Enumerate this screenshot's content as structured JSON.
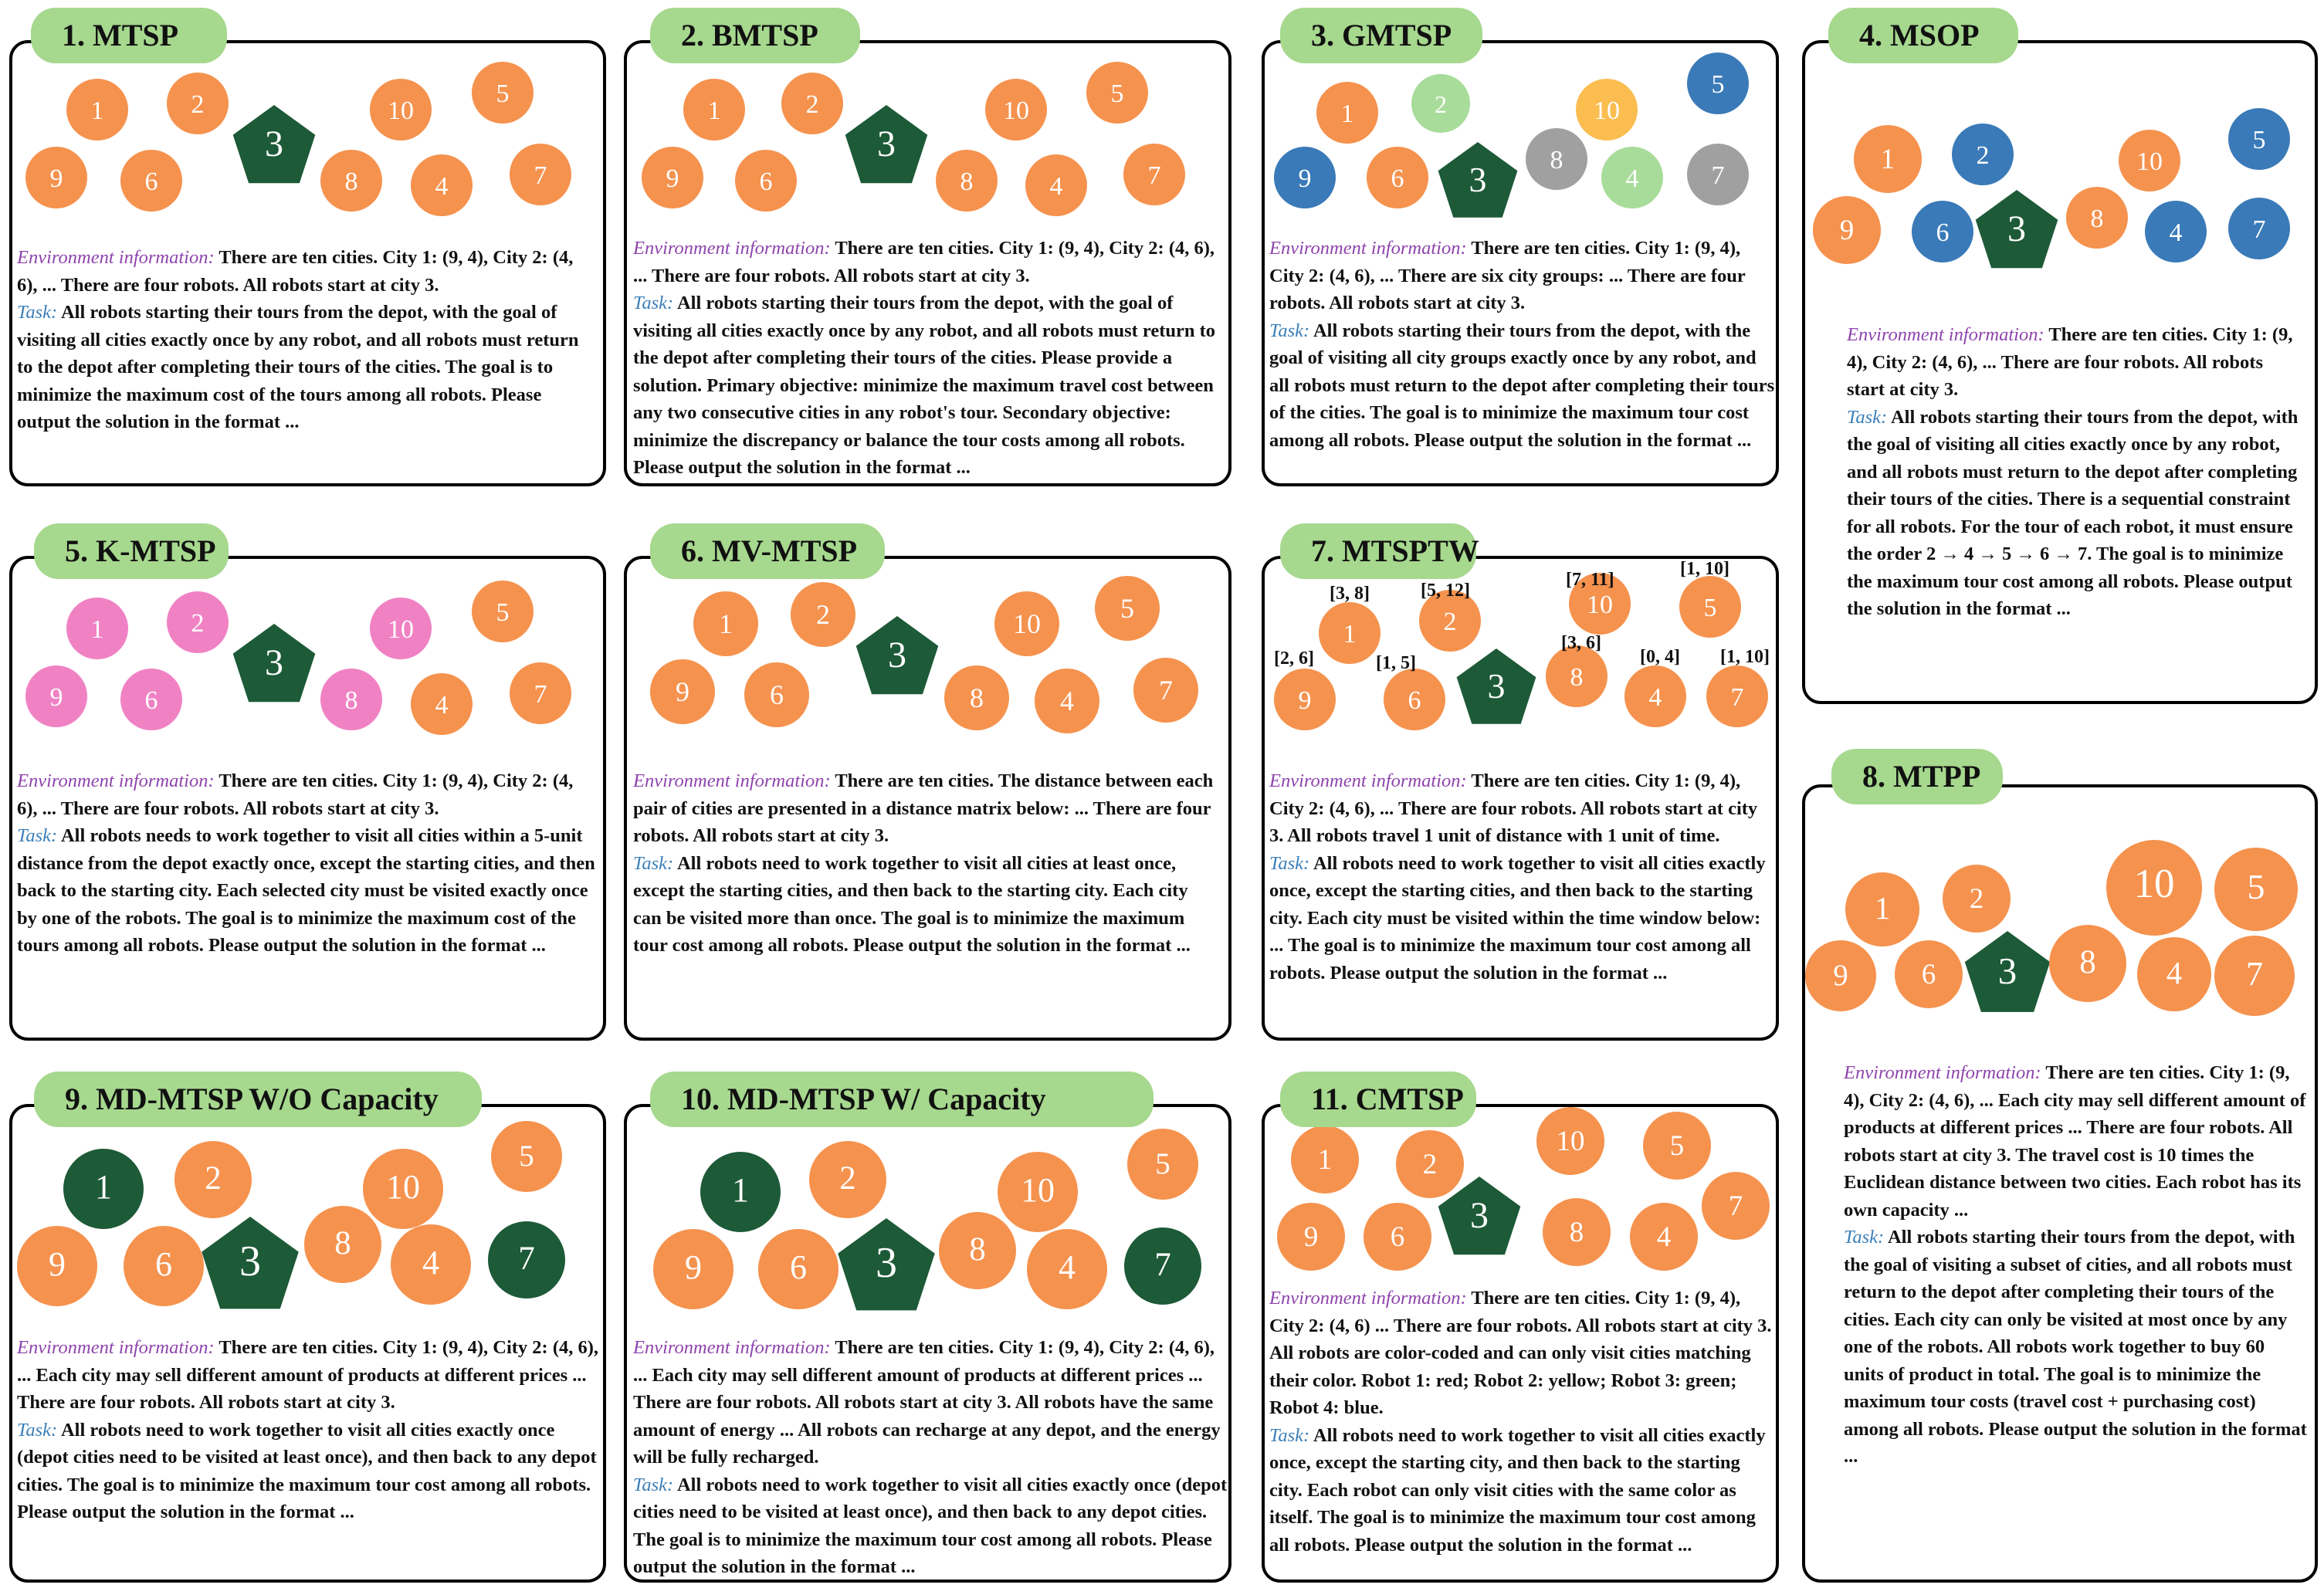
{
  "colors": {
    "orange": "#f5924e",
    "dark_green": "#1d5a37",
    "light_green": "#a8dc9a",
    "yellow": "#fbbd50",
    "blue": "#3a7ab8",
    "gray": "#a0a0a0",
    "pink": "#f082c4",
    "tab_green": "#a6d88e",
    "env_purple": "#8e44ad",
    "task_blue": "#3b7fb8"
  },
  "panels": [
    {
      "title": "1. MTSP",
      "env_label": "Environment information:",
      "env_text": "  There are ten cities. City 1: (9, 4), City 2: (4, 6), ... There are four robots. All robots start at city 3.",
      "task_label": "Task:",
      "task_text": " All robots starting their tours from the depot, with the goal of visiting all cities exactly once by any robot, and all robots must return to the depot after completing their tours of the cities. The goal is to minimize the maximum cost of the tours among all robots. Please output the solution in the format ...",
      "nodes": [
        {
          "label": "1",
          "color": "orange",
          "shape": "circle"
        },
        {
          "label": "2",
          "color": "orange",
          "shape": "circle"
        },
        {
          "label": "3",
          "color": "dark_green",
          "shape": "pentagon"
        },
        {
          "label": "10",
          "color": "orange",
          "shape": "circle"
        },
        {
          "label": "5",
          "color": "orange",
          "shape": "circle"
        },
        {
          "label": "9",
          "color": "orange",
          "shape": "circle"
        },
        {
          "label": "6",
          "color": "orange",
          "shape": "circle"
        },
        {
          "label": "8",
          "color": "orange",
          "shape": "circle"
        },
        {
          "label": "4",
          "color": "orange",
          "shape": "circle"
        },
        {
          "label": "7",
          "color": "orange",
          "shape": "circle"
        }
      ]
    },
    {
      "title": "2. BMTSP",
      "env_label": "Environment information:",
      "env_text": " There are ten cities. City 1: (9, 4), City 2: (4, 6), ... There are four robots. All robots start at city 3.",
      "task_label": "Task:",
      "task_text": " All robots starting their tours from the depot, with the goal of visiting all cities exactly once by any robot, and all robots must return to the depot after completing their tours of the cities. Please provide a solution. Primary objective: minimize the maximum travel cost between any two consecutive cities in any robot's tour. Secondary objective: minimize the discrepancy or balance the tour costs among all robots. Please output the solution in the format ...",
      "nodes": [
        {
          "label": "1",
          "color": "orange",
          "shape": "circle"
        },
        {
          "label": "2",
          "color": "orange",
          "shape": "circle"
        },
        {
          "label": "3",
          "color": "dark_green",
          "shape": "pentagon"
        },
        {
          "label": "10",
          "color": "orange",
          "shape": "circle"
        },
        {
          "label": "5",
          "color": "orange",
          "shape": "circle"
        },
        {
          "label": "9",
          "color": "orange",
          "shape": "circle"
        },
        {
          "label": "6",
          "color": "orange",
          "shape": "circle"
        },
        {
          "label": "8",
          "color": "orange",
          "shape": "circle"
        },
        {
          "label": "4",
          "color": "orange",
          "shape": "circle"
        },
        {
          "label": "7",
          "color": "orange",
          "shape": "circle"
        }
      ]
    },
    {
      "title": "3. GMTSP",
      "env_label": "Environment information:",
      "env_text": " There are ten cities. City 1: (9, 4), City 2: (4, 6), ... There are six city groups: ... There are four robots. All robots start at city 3.",
      "task_label": "Task:",
      "task_text": " All robots starting their tours from the depot, with the goal of visiting all city groups exactly once by any robot, and all robots must return to the depot after completing their tours of the cities. The goal is to minimize the maximum tour cost among all robots. Please output the solution in the format ...",
      "nodes": [
        {
          "label": "1",
          "color": "orange",
          "shape": "circle"
        },
        {
          "label": "2",
          "color": "light_green",
          "shape": "circle"
        },
        {
          "label": "10",
          "color": "yellow",
          "shape": "circle"
        },
        {
          "label": "5",
          "color": "blue",
          "shape": "circle"
        },
        {
          "label": "9",
          "color": "blue",
          "shape": "circle"
        },
        {
          "label": "6",
          "color": "orange",
          "shape": "circle"
        },
        {
          "label": "3",
          "color": "dark_green",
          "shape": "pentagon"
        },
        {
          "label": "8",
          "color": "gray",
          "shape": "circle"
        },
        {
          "label": "4",
          "color": "light_green",
          "shape": "circle"
        },
        {
          "label": "7",
          "color": "gray",
          "shape": "circle"
        }
      ]
    },
    {
      "title": "4. MSOP",
      "env_label": "Environment information:",
      "env_text": " There are ten cities. City 1: (9, 4), City 2: (4, 6), ... There are four robots. All robots start at city 3.",
      "task_label": "Task:",
      "task_text": " All robots starting their tours from the depot, with the goal of visiting all cities exactly once by any robot, and all robots must return to the depot after completing their tours of the cities. There is a sequential constraint for all robots. For the tour of each robot, it must ensure the order 2 → 4 → 5 → 6 → 7. The goal is to minimize the maximum tour cost among all robots. Please output the solution in the format ...",
      "nodes": [
        {
          "label": "1",
          "color": "orange",
          "shape": "circle"
        },
        {
          "label": "2",
          "color": "blue",
          "shape": "circle"
        },
        {
          "label": "10",
          "color": "orange",
          "shape": "circle"
        },
        {
          "label": "5",
          "color": "blue",
          "shape": "circle"
        },
        {
          "label": "9",
          "color": "orange",
          "shape": "circle"
        },
        {
          "label": "6",
          "color": "blue",
          "shape": "circle"
        },
        {
          "label": "3",
          "color": "dark_green",
          "shape": "pentagon"
        },
        {
          "label": "8",
          "color": "orange",
          "shape": "circle"
        },
        {
          "label": "4",
          "color": "blue",
          "shape": "circle"
        },
        {
          "label": "7",
          "color": "blue",
          "shape": "circle"
        }
      ]
    },
    {
      "title": "5. K-MTSP",
      "env_label": "Environment information:",
      "env_text": " There are ten cities. City 1: (9, 4), City 2: (4, 6), ... There are four robots. All robots start at city 3.",
      "task_label": "Task:",
      "task_text": " All robots needs to work together to visit all cities within a 5-unit distance from the depot exactly once, except the starting cities, and then back to the starting city. Each selected city must be visited exactly once by one of the robots. The goal is to minimize the maximum cost of the tours among all robots. Please output the solution in the format ...",
      "nodes": [
        {
          "label": "1",
          "color": "pink",
          "shape": "circle"
        },
        {
          "label": "2",
          "color": "pink",
          "shape": "circle"
        },
        {
          "label": "3",
          "color": "dark_green",
          "shape": "pentagon"
        },
        {
          "label": "10",
          "color": "pink",
          "shape": "circle"
        },
        {
          "label": "5",
          "color": "orange",
          "shape": "circle"
        },
        {
          "label": "9",
          "color": "pink",
          "shape": "circle"
        },
        {
          "label": "6",
          "color": "pink",
          "shape": "circle"
        },
        {
          "label": "8",
          "color": "pink",
          "shape": "circle"
        },
        {
          "label": "4",
          "color": "orange",
          "shape": "circle"
        },
        {
          "label": "7",
          "color": "orange",
          "shape": "circle"
        }
      ]
    },
    {
      "title": "6.  MV-MTSP",
      "env_label": "Environment information:",
      "env_text": " There are ten cities. The distance between each pair of cities are presented in a distance matrix below: ... There are four robots. All robots start at city 3.",
      "task_label": "Task:",
      "task_text": " All robots need to work together to visit all cities at least once, except the starting cities, and then back to the starting city. Each city can be visited more than once. The goal is to minimize the maximum tour cost among all robots. Please output the solution in the format ...",
      "nodes": [
        {
          "label": "1",
          "color": "orange",
          "shape": "circle"
        },
        {
          "label": "2",
          "color": "orange",
          "shape": "circle"
        },
        {
          "label": "3",
          "color": "dark_green",
          "shape": "pentagon"
        },
        {
          "label": "10",
          "color": "orange",
          "shape": "circle"
        },
        {
          "label": "5",
          "color": "orange",
          "shape": "circle"
        },
        {
          "label": "9",
          "color": "orange",
          "shape": "circle"
        },
        {
          "label": "6",
          "color": "orange",
          "shape": "circle"
        },
        {
          "label": "8",
          "color": "orange",
          "shape": "circle"
        },
        {
          "label": "4",
          "color": "orange",
          "shape": "circle"
        },
        {
          "label": "7",
          "color": "orange",
          "shape": "circle"
        }
      ]
    },
    {
      "title": "7. MTSPTW",
      "env_label": "Environment information:",
      "env_text": " There are ten cities. City 1: (9, 4), City 2: (4, 6), ... There are four robots. All robots start at city 3. All robots travel 1 unit of distance with 1 unit of time.",
      "task_label": "Task:",
      "task_text": " All robots need to work together to visit all cities exactly once, except the starting cities, and then back to the starting city. Each city must be visited within the time window below: ... The goal is to minimize the maximum tour cost among all robots. Please output the solution in the format ...",
      "nodes": [
        {
          "label": "1",
          "color": "orange",
          "shape": "circle",
          "window": "[3, 8]"
        },
        {
          "label": "2",
          "color": "orange",
          "shape": "circle",
          "window": "[5, 12]"
        },
        {
          "label": "10",
          "color": "orange",
          "shape": "circle",
          "window": "[7, 11]"
        },
        {
          "label": "5",
          "color": "orange",
          "shape": "circle",
          "window": "[1, 10]"
        },
        {
          "label": "9",
          "color": "orange",
          "shape": "circle",
          "window": "[2, 6]"
        },
        {
          "label": "6",
          "color": "orange",
          "shape": "circle",
          "window": "[1, 5]"
        },
        {
          "label": "3",
          "color": "dark_green",
          "shape": "pentagon"
        },
        {
          "label": "8",
          "color": "orange",
          "shape": "circle",
          "window": "[3, 6]"
        },
        {
          "label": "4",
          "color": "orange",
          "shape": "circle",
          "window": "[0, 4]"
        },
        {
          "label": "7",
          "color": "orange",
          "shape": "circle",
          "window": "[1, 10]"
        }
      ]
    },
    {
      "title": "8. MTPP",
      "env_label": "Environment information:",
      "env_text": " There are ten cities. City 1: (9, 4), City 2: (4, 6), ... Each city may sell different amount of products at different prices ... There are four robots. All robots start at city 3. The travel cost is 10 times the Euclidean distance between two cities. Each robot has its own capacity ...",
      "task_label": "Task:",
      "task_text": " All robots starting their tours from the depot, with the goal of visiting a subset of cities, and all robots must return to the depot after completing their tours of the cities. Each city can only be visited at most once by any one of the robots. All robots work together to buy 60 units of product in total. The goal is to minimize the maximum tour costs (travel cost + purchasing cost) among all robots. Please output the solution in the format ...",
      "nodes": [
        {
          "label": "1",
          "color": "orange",
          "shape": "circle"
        },
        {
          "label": "2",
          "color": "orange",
          "shape": "circle"
        },
        {
          "label": "10",
          "color": "orange",
          "shape": "circle"
        },
        {
          "label": "5",
          "color": "orange",
          "shape": "circle"
        },
        {
          "label": "9",
          "color": "orange",
          "shape": "circle"
        },
        {
          "label": "6",
          "color": "orange",
          "shape": "circle"
        },
        {
          "label": "3",
          "color": "dark_green",
          "shape": "pentagon"
        },
        {
          "label": "8",
          "color": "orange",
          "shape": "circle"
        },
        {
          "label": "4",
          "color": "orange",
          "shape": "circle"
        },
        {
          "label": "7",
          "color": "orange",
          "shape": "circle"
        }
      ]
    },
    {
      "title": "9. MD-MTSP W/O Capacity",
      "env_label": "Environment information:",
      "env_text": " There are ten cities. City 1: (9, 4), City 2: (4, 6), ... Each city may sell different amount of products at different prices ... There are four robots. All robots start at city 3.",
      "task_label": "Task:",
      "task_text": " All robots need to work together to visit all cities exactly once (depot cities need to be visited at least once), and then back to any depot cities. The goal is to minimize the maximum tour cost among all robots. Please output the solution in the format ...",
      "nodes": [
        {
          "label": "1",
          "color": "dark_green",
          "shape": "circle"
        },
        {
          "label": "2",
          "color": "orange",
          "shape": "circle"
        },
        {
          "label": "10",
          "color": "orange",
          "shape": "circle"
        },
        {
          "label": "5",
          "color": "orange",
          "shape": "circle"
        },
        {
          "label": "9",
          "color": "orange",
          "shape": "circle"
        },
        {
          "label": "6",
          "color": "orange",
          "shape": "circle"
        },
        {
          "label": "3",
          "color": "dark_green",
          "shape": "pentagon"
        },
        {
          "label": "8",
          "color": "orange",
          "shape": "circle"
        },
        {
          "label": "4",
          "color": "orange",
          "shape": "circle"
        },
        {
          "label": "7",
          "color": "dark_green",
          "shape": "circle"
        }
      ]
    },
    {
      "title": "10. MD-MTSP W/ Capacity",
      "env_label": "Environment information:",
      "env_text": " There are ten cities. City 1: (9, 4), City 2: (4, 6), ... Each city may sell different amount of products at different prices ... There are four robots. All robots start at city 3. All robots have the same amount of energy ... All robots can recharge at any depot, and the energy will be fully recharged.",
      "task_label": "Task:",
      "task_text": " All robots need to work together to visit all cities exactly once (depot cities need to be visited at least once), and then back to any depot cities. The goal is to minimize the maximum tour cost among all robots. Please output the solution in the format ...",
      "nodes": [
        {
          "label": "1",
          "color": "dark_green",
          "shape": "circle"
        },
        {
          "label": "2",
          "color": "orange",
          "shape": "circle"
        },
        {
          "label": "10",
          "color": "orange",
          "shape": "circle"
        },
        {
          "label": "5",
          "color": "orange",
          "shape": "circle"
        },
        {
          "label": "9",
          "color": "orange",
          "shape": "circle"
        },
        {
          "label": "6",
          "color": "orange",
          "shape": "circle"
        },
        {
          "label": "3",
          "color": "dark_green",
          "shape": "pentagon"
        },
        {
          "label": "8",
          "color": "orange",
          "shape": "circle"
        },
        {
          "label": "4",
          "color": "orange",
          "shape": "circle"
        },
        {
          "label": "7",
          "color": "dark_green",
          "shape": "circle"
        }
      ]
    },
    {
      "title": "11. CMTSP",
      "env_label": "Environment information:",
      "env_text": " There are ten cities. City 1: (9, 4), City 2: (4, 6) ... There are four robots. All robots start at city 3. All robots are color-coded and can only visit cities matching their color. Robot 1: red; Robot 2: yellow; Robot 3: green; Robot 4: blue.",
      "task_label": "Task:",
      "task_text": " All robots need to work together to visit all cities exactly once, except the starting city, and then back to the starting city. Each robot can only visit cities with the same color as itself. The goal is to minimize the maximum tour cost among all robots. Please output the solution in the format ...",
      "nodes": [
        {
          "label": "1",
          "color": "orange",
          "shape": "circle"
        },
        {
          "label": "2",
          "color": "orange",
          "shape": "circle"
        },
        {
          "label": "10",
          "color": "orange",
          "shape": "circle"
        },
        {
          "label": "5",
          "color": "orange",
          "shape": "circle"
        },
        {
          "label": "9",
          "color": "orange",
          "shape": "circle"
        },
        {
          "label": "6",
          "color": "orange",
          "shape": "circle"
        },
        {
          "label": "3",
          "color": "dark_green",
          "shape": "pentagon"
        },
        {
          "label": "8",
          "color": "orange",
          "shape": "circle"
        },
        {
          "label": "4",
          "color": "orange",
          "shape": "circle"
        },
        {
          "label": "7",
          "color": "orange",
          "shape": "circle"
        }
      ]
    }
  ]
}
